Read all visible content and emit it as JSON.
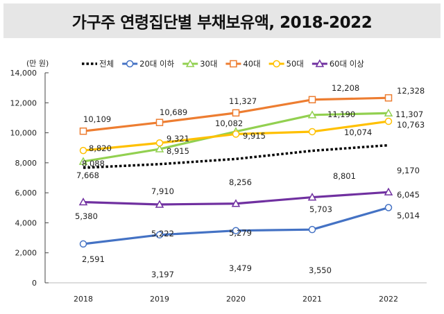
{
  "chart_data": {
    "type": "line",
    "title": "가구주 연령집단별 부채보유액, 2018-2022",
    "ylabel": "(만 원)",
    "xlabel": "",
    "categories": [
      "2018",
      "2019",
      "2020",
      "2021",
      "2022"
    ],
    "ylim": [
      0,
      14000
    ],
    "yticks": [
      "0",
      "2,000",
      "4,000",
      "6,000",
      "8,000",
      "10,000",
      "12,000",
      "14,000"
    ],
    "grid": false,
    "legend_position": "top",
    "series": [
      {
        "name": "전체",
        "values": [
          7668,
          7910,
          8256,
          8801,
          9170
        ],
        "labels": [
          "7,668",
          "7,910",
          "8,256",
          "8,801",
          "9,170"
        ],
        "color": "#000000",
        "marker": "none",
        "style": "dotted"
      },
      {
        "name": "20대 이하",
        "values": [
          2591,
          3197,
          3479,
          3550,
          5014
        ],
        "labels": [
          "2,591",
          "3,197",
          "3,479",
          "3,550",
          "5,014"
        ],
        "color": "#4472c4",
        "marker": "circle"
      },
      {
        "name": "30대",
        "values": [
          8088,
          8915,
          10082,
          11190,
          11307
        ],
        "labels": [
          "8,088",
          "8,915",
          "10,082",
          "11,190",
          "11,307"
        ],
        "color": "#92d050",
        "marker": "triangle"
      },
      {
        "name": "40대",
        "values": [
          10109,
          10689,
          11327,
          12208,
          12328
        ],
        "labels": [
          "10,109",
          "10,689",
          "11,327",
          "12,208",
          "12,328"
        ],
        "color": "#ed7d31",
        "marker": "square"
      },
      {
        "name": "50대",
        "values": [
          8820,
          9321,
          9915,
          10074,
          10763
        ],
        "labels": [
          "8,820",
          "9,321",
          "9,915",
          "10,074",
          "10,763"
        ],
        "color": "#ffc000",
        "marker": "circle"
      },
      {
        "name": "60대 이상",
        "values": [
          5380,
          5222,
          5279,
          5703,
          6045
        ],
        "labels": [
          "5,380",
          "5,222",
          "5,279",
          "5,703",
          "6,045"
        ],
        "color": "#7030a0",
        "marker": "triangle"
      }
    ]
  }
}
